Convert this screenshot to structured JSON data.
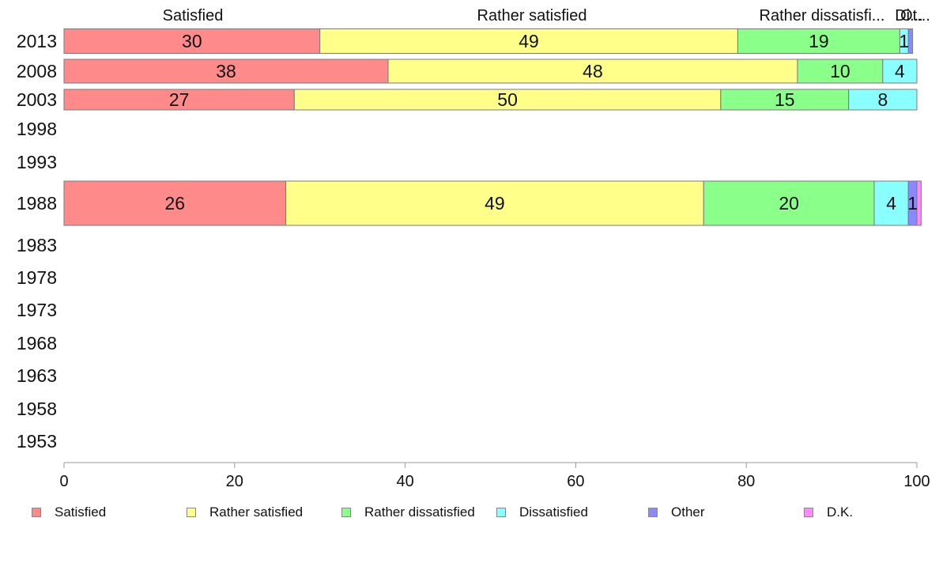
{
  "chart_data": {
    "type": "bar",
    "orientation": "horizontal",
    "stacked": true,
    "categories": [
      "2013",
      "2008",
      "2003",
      "1998",
      "1993",
      "1988",
      "1983",
      "1978",
      "1973",
      "1968",
      "1963",
      "1958",
      "1953"
    ],
    "series": [
      {
        "name": "Satisfied",
        "color": "#ff8a8a",
        "values": [
          30,
          38,
          27,
          null,
          null,
          26,
          null,
          null,
          null,
          null,
          null,
          null,
          null
        ]
      },
      {
        "name": "Rather satisfied",
        "color": "#ffff8a",
        "values": [
          49,
          48,
          50,
          null,
          null,
          49,
          null,
          null,
          null,
          null,
          null,
          null,
          null
        ]
      },
      {
        "name": "Rather dissatisfied",
        "color": "#8aff8a",
        "values": [
          19,
          10,
          15,
          null,
          null,
          20,
          null,
          null,
          null,
          null,
          null,
          null,
          null
        ]
      },
      {
        "name": "Dissatisfied",
        "color": "#8affff",
        "values": [
          1,
          4,
          8,
          null,
          null,
          4,
          null,
          null,
          null,
          null,
          null,
          null,
          null
        ]
      },
      {
        "name": "Other",
        "color": "#8a8aff",
        "values": [
          0.5,
          0,
          0,
          null,
          null,
          1,
          null,
          null,
          null,
          null,
          null,
          null,
          null
        ]
      },
      {
        "name": "D.K.",
        "color": "#ff8aff",
        "values": [
          0,
          0,
          0,
          null,
          null,
          0.5,
          null,
          null,
          null,
          null,
          null,
          null,
          null
        ]
      }
    ],
    "bar_labels": {
      "2013": [
        "30",
        "49",
        "19",
        "1",
        "",
        ""
      ],
      "2008": [
        "38",
        "48",
        "10",
        "4",
        "",
        ""
      ],
      "2003": [
        "27",
        "50",
        "15",
        "8",
        "",
        ""
      ],
      "1988": [
        "26",
        "49",
        "20",
        "4",
        "1",
        ""
      ]
    },
    "top_labels": [
      "Satisfied",
      "Rather satisfied",
      "Rather dissatisfi...",
      "Di...",
      "Ot..."
    ],
    "xlim": [
      0,
      100
    ],
    "xticks": [
      0,
      20,
      40,
      60,
      80,
      100
    ],
    "title": "",
    "xlabel": "",
    "ylabel": "",
    "grid": false,
    "legend_position": "bottom"
  }
}
